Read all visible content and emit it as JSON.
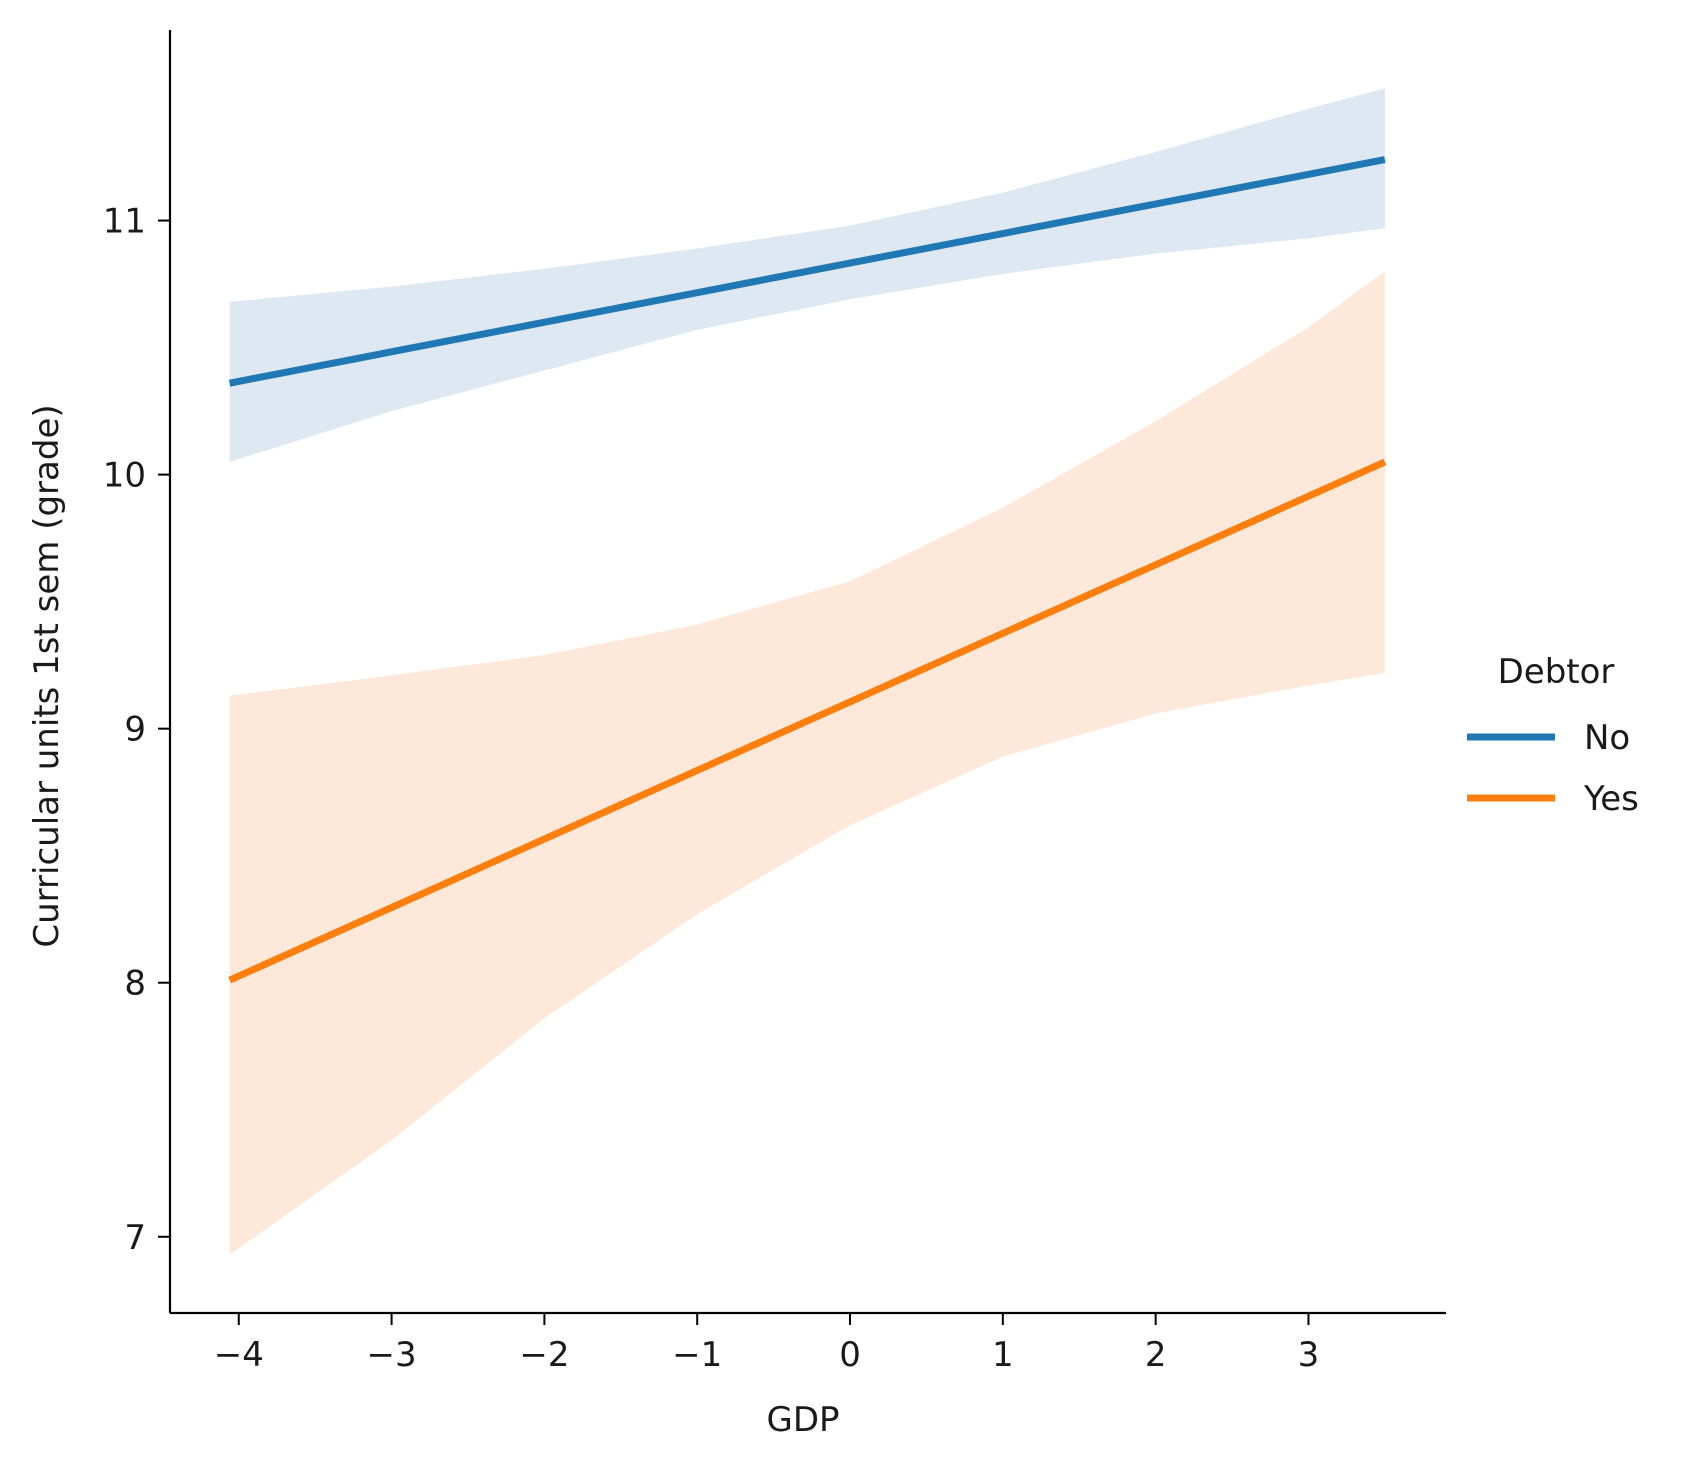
{
  "chart_data": {
    "type": "line",
    "title": "",
    "xlabel": "GDP",
    "ylabel": "Curricular units 1st sem (grade)",
    "xlim": [
      -4.45,
      3.9
    ],
    "ylim": [
      6.7,
      11.75
    ],
    "x_ticks": [
      -4,
      -3,
      -2,
      -1,
      0,
      1,
      2,
      3
    ],
    "x_tick_labels": [
      "−4",
      "−3",
      "−2",
      "−1",
      "0",
      "1",
      "2",
      "3"
    ],
    "y_ticks": [
      7,
      8,
      9,
      10,
      11
    ],
    "y_tick_labels": [
      "7",
      "8",
      "9",
      "10",
      "11"
    ],
    "grid": false,
    "legend": {
      "title": "Debtor",
      "placement": "right",
      "entries": [
        "No",
        "Yes"
      ]
    },
    "series": [
      {
        "name": "No",
        "color": "#1f77b4",
        "band_color": "#dde8f2",
        "x": [
          -4.06,
          3.5
        ],
        "y": [
          10.36,
          11.24
        ],
        "ci_x": [
          -4.06,
          -3.0,
          -2.0,
          -1.0,
          0.0,
          1.0,
          2.0,
          3.0,
          3.5
        ],
        "ci_upper": [
          10.68,
          10.74,
          10.81,
          10.89,
          10.98,
          11.11,
          11.27,
          11.44,
          11.52
        ],
        "ci_lower": [
          10.05,
          10.25,
          10.41,
          10.57,
          10.69,
          10.79,
          10.87,
          10.93,
          10.97
        ]
      },
      {
        "name": "Yes",
        "color": "#ff7f0e",
        "band_color": "#fde8da",
        "x": [
          -4.06,
          3.5
        ],
        "y": [
          8.01,
          10.05
        ],
        "ci_x": [
          -4.06,
          -3.0,
          -2.0,
          -1.0,
          0.0,
          1.0,
          2.0,
          3.0,
          3.5
        ],
        "ci_upper": [
          9.13,
          9.21,
          9.29,
          9.41,
          9.58,
          9.87,
          10.21,
          10.58,
          10.8
        ],
        "ci_lower": [
          6.93,
          7.38,
          7.86,
          8.27,
          8.62,
          8.89,
          9.06,
          9.17,
          9.22
        ]
      }
    ]
  }
}
